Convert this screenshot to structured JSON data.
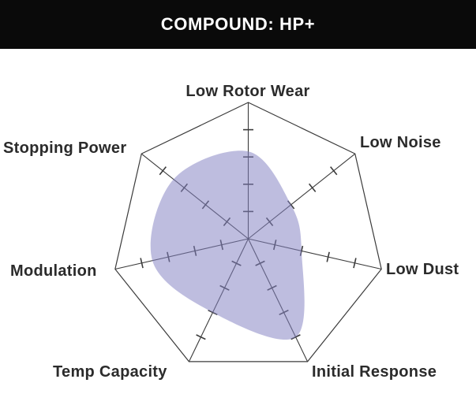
{
  "header": {
    "title": "COMPOUND: HP+"
  },
  "chart_data": {
    "type": "radar",
    "title": "COMPOUND: HP+",
    "categories": [
      "Low Rotor Wear",
      "Low Noise",
      "Low Dust",
      "Initial Response",
      "Temp Capacity",
      "Modulation",
      "Stopping Power"
    ],
    "series": [
      {
        "name": "HP+",
        "values": [
          3.2,
          2.0,
          2.0,
          4.0,
          3.0,
          3.6,
          3.5
        ]
      }
    ],
    "scale": {
      "min": 0,
      "max": 5,
      "tick_interval": 1,
      "tick_labels_shown": false
    },
    "layout_hints": {
      "start_axis": "top",
      "direction": "clockwise",
      "smoothed_line": true,
      "grid_rings_shown": false,
      "legend": "none"
    },
    "style": {
      "fill_color": "#8381c1",
      "fill_opacity": 0.52,
      "grid_color": "#3b3b3b",
      "label_color": "#2b2b2b",
      "banner_bg": "#0a0a0a",
      "banner_text_color": "#ffffff"
    }
  }
}
